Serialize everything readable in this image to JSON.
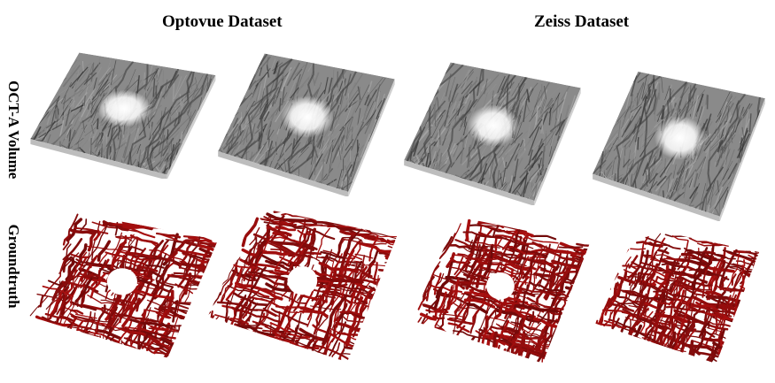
{
  "figure": {
    "column_titles": [
      "Optovue Dataset",
      "Zeiss Dataset"
    ],
    "row_labels": [
      "OCT-A Volume",
      "Groundtruth"
    ]
  },
  "panels": [
    {
      "row": "OCT-A Volume",
      "dataset": "Optovue Dataset",
      "index": 1,
      "style": "volume",
      "color": "#6b6b6b",
      "fovea_visible": true
    },
    {
      "row": "OCT-A Volume",
      "dataset": "Optovue Dataset",
      "index": 2,
      "style": "volume",
      "color": "#6b6b6b",
      "fovea_visible": true
    },
    {
      "row": "OCT-A Volume",
      "dataset": "Zeiss Dataset",
      "index": 1,
      "style": "volume",
      "color": "#6b6b6b",
      "fovea_visible": true
    },
    {
      "row": "OCT-A Volume",
      "dataset": "Zeiss Dataset",
      "index": 2,
      "style": "volume",
      "color": "#6b6b6b",
      "fovea_visible": true
    },
    {
      "row": "Groundtruth",
      "dataset": "Optovue Dataset",
      "index": 1,
      "style": "vessels",
      "color": "#8b0e0e",
      "fovea_visible": true
    },
    {
      "row": "Groundtruth",
      "dataset": "Optovue Dataset",
      "index": 2,
      "style": "vessels",
      "color": "#8b0e0e",
      "fovea_visible": true
    },
    {
      "row": "Groundtruth",
      "dataset": "Zeiss Dataset",
      "index": 1,
      "style": "vessels",
      "color": "#8b0e0e",
      "fovea_visible": true
    },
    {
      "row": "Groundtruth",
      "dataset": "Zeiss Dataset",
      "index": 2,
      "style": "vessels",
      "color": "#8b0e0e",
      "fovea_visible": false
    }
  ]
}
